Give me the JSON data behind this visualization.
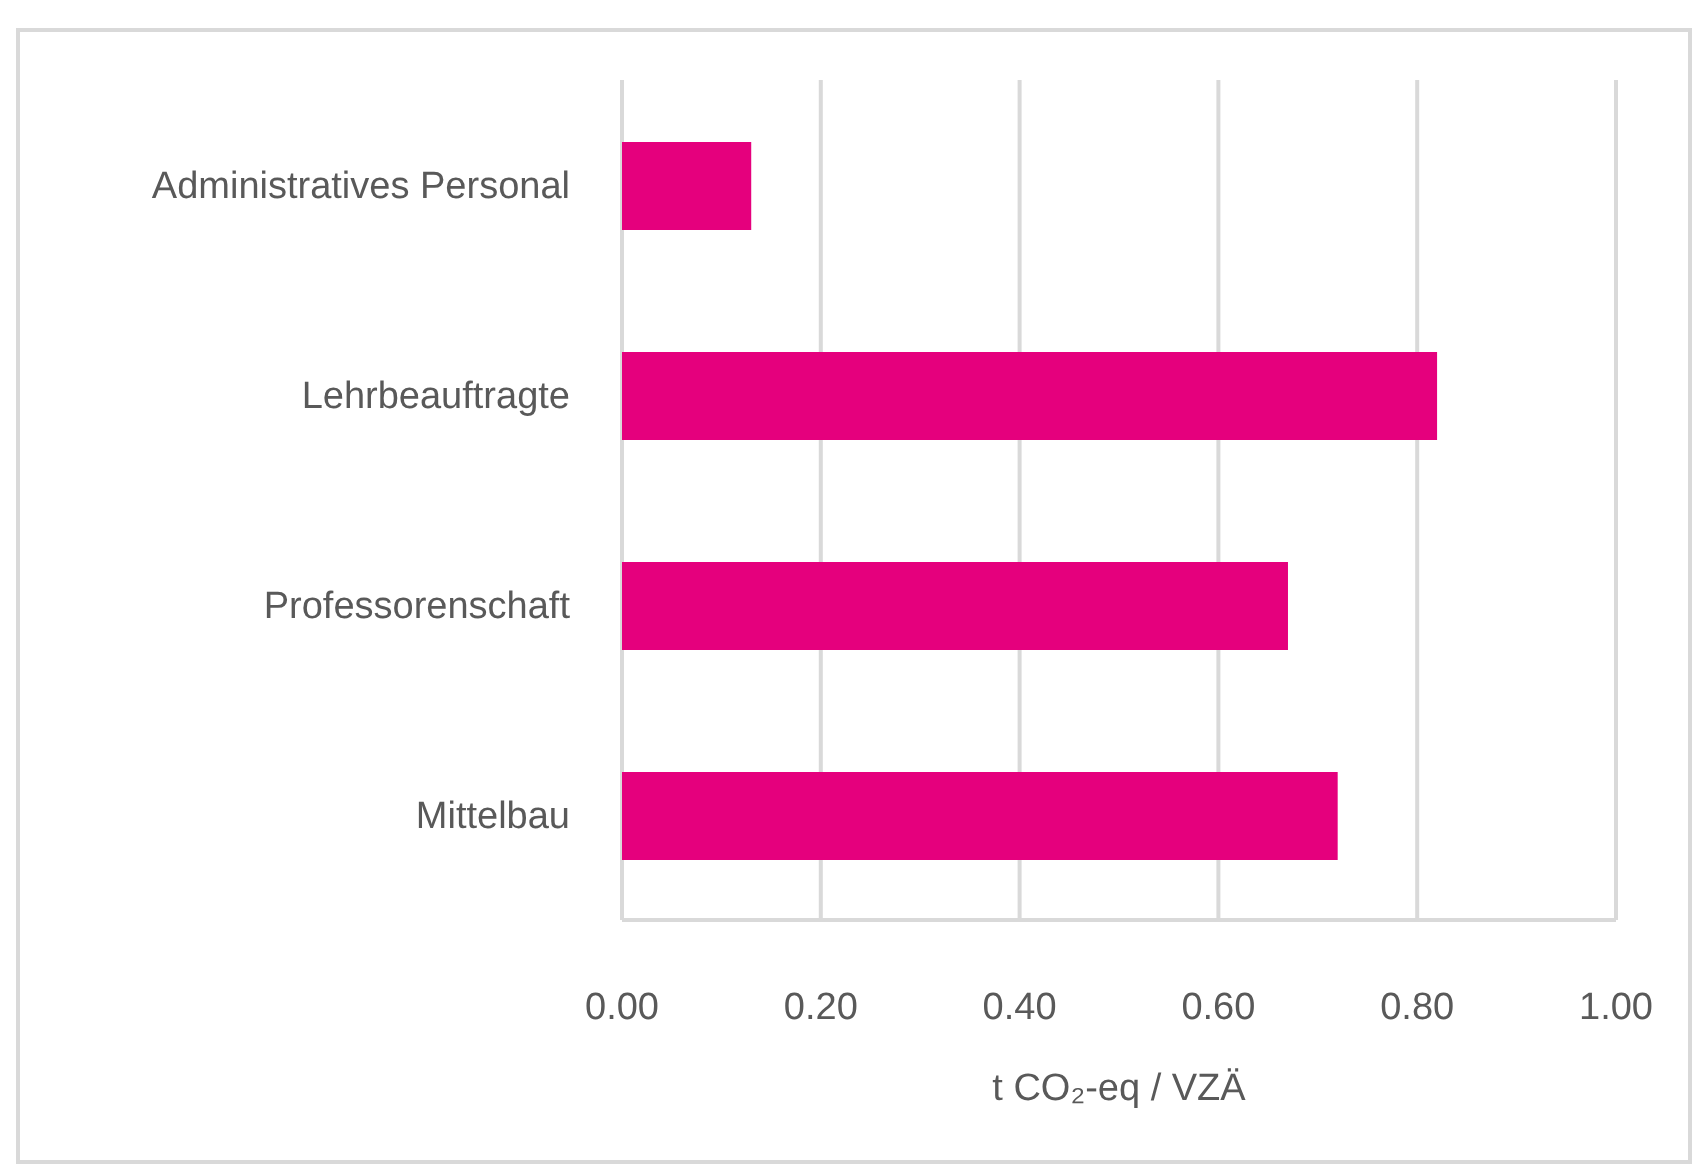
{
  "chart_data": {
    "type": "bar",
    "orientation": "horizontal",
    "xlabel": "t CO₂-eq / VZÄ",
    "categories": [
      "Administratives Personal",
      "Lehrbeauftragte",
      "Professorenschaft",
      "Mittelbau"
    ],
    "values": [
      0.13,
      0.82,
      0.67,
      0.72
    ],
    "color": "#e5007d",
    "xlim": [
      0,
      1
    ],
    "xticks": [
      {
        "value": 0,
        "label": "0.00"
      },
      {
        "value": 0.2,
        "label": "0.20"
      },
      {
        "value": 0.4,
        "label": "0.40"
      },
      {
        "value": 0.6,
        "label": "0.60"
      },
      {
        "value": 0.8,
        "label": "0.80"
      },
      {
        "value": 1,
        "label": "1.00"
      }
    ],
    "grid": "x",
    "legend": false
  }
}
